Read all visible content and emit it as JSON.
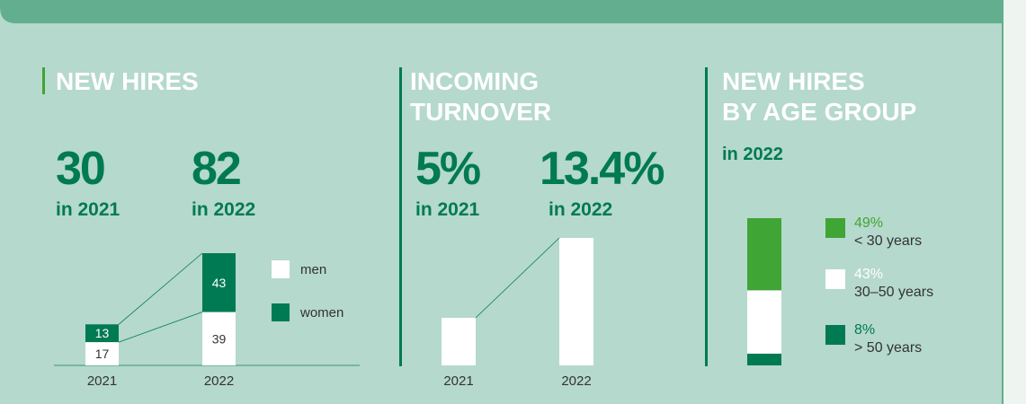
{
  "chart_data": [
    {
      "type": "stacked_bar",
      "title_lines": [
        "NEW HIRES"
      ],
      "totals": [
        30,
        82
      ],
      "captions": [
        "in 2021",
        "in 2022"
      ],
      "categories": [
        "2021",
        "2022"
      ],
      "series": [
        {
          "name": "men",
          "color": "#ffffff",
          "values": [
            17,
            39
          ]
        },
        {
          "name": "women",
          "color": "#007a53",
          "values": [
            13,
            43
          ]
        }
      ]
    },
    {
      "type": "bar",
      "title_lines": [
        "INCOMING",
        "TURNOVER"
      ],
      "categories": [
        "2021",
        "2022"
      ],
      "values": [
        5,
        13.4
      ],
      "value_labels": [
        "5%",
        "13.4%"
      ],
      "captions": [
        "in 2021",
        "in 2022"
      ],
      "color": "#ffffff"
    },
    {
      "type": "percent_bar",
      "title_lines": [
        "NEW HIRES",
        "BY AGE GROUP"
      ],
      "subtitle": "in 2022",
      "categories": [
        "< 30 years",
        "30–50 years",
        "> 50 years"
      ],
      "values": [
        49,
        43,
        8
      ],
      "value_labels": [
        "49%",
        "43%",
        "8%"
      ],
      "colors": [
        "#3fa535",
        "#ffffff",
        "#007a53"
      ]
    }
  ]
}
